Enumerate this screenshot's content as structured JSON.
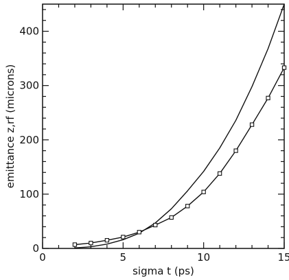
{
  "chart_data": {
    "type": "line",
    "title": "",
    "xlabel": "sigma t (ps)",
    "ylabel": "emittance z,rf (microns)",
    "xlim": [
      0,
      15
    ],
    "ylim": [
      0,
      450
    ],
    "xticks": [
      0,
      5,
      10,
      15
    ],
    "yticks": [
      0,
      100,
      200,
      300,
      400
    ],
    "grid": false,
    "series": [
      {
        "marker": "none",
        "x": [
          2,
          3,
          4,
          5,
          6,
          7,
          8,
          9,
          10,
          11,
          12,
          13,
          14,
          15
        ],
        "y": [
          1,
          3,
          8,
          16,
          28,
          47,
          73,
          106,
          142,
          185,
          236,
          298,
          368,
          450
        ]
      },
      {
        "marker": "square",
        "x": [
          2,
          3,
          4,
          5,
          6,
          7,
          8,
          9,
          10,
          11,
          12,
          13,
          14,
          15
        ],
        "y": [
          7,
          10,
          15,
          21,
          30,
          43,
          57,
          78,
          104,
          138,
          180,
          228,
          277,
          333
        ]
      }
    ]
  },
  "colors": {
    "ink": "#111111",
    "background": "#ffffff"
  }
}
